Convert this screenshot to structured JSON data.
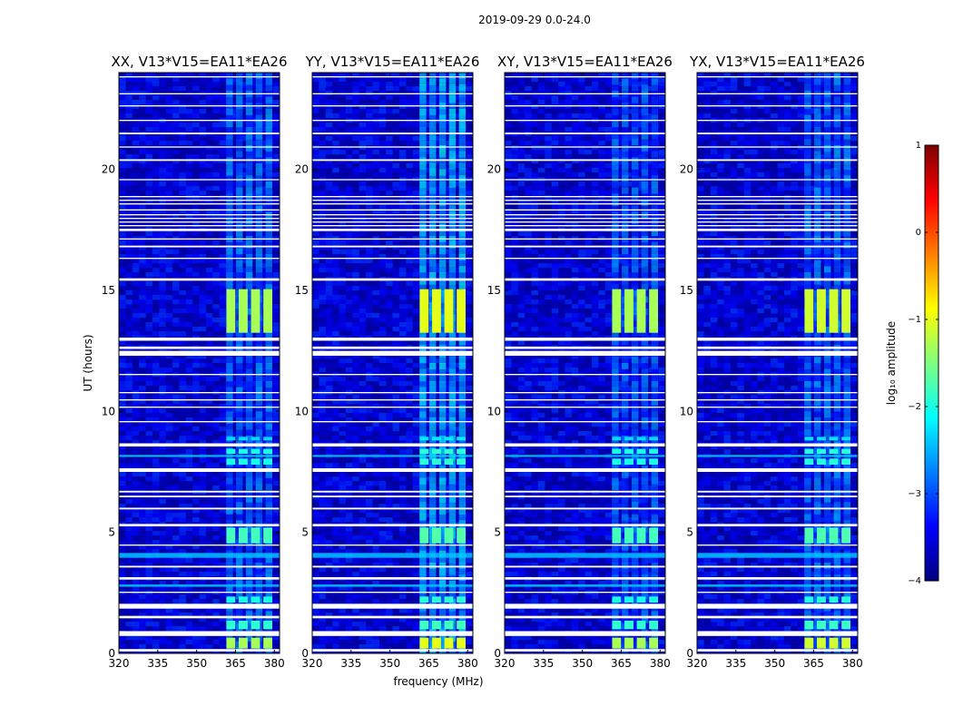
{
  "suptitle": "2019-09-29 0.0-24.0",
  "chart_data": {
    "type": "heatmap",
    "title": "2019-09-29 0.0-24.0",
    "xlabel": "frequency (MHz)",
    "ylabel": "UT (hours)",
    "xlim": [
      320,
      382
    ],
    "ylim": [
      0,
      24
    ],
    "xticks": [
      320,
      335,
      350,
      365,
      380
    ],
    "yticks": [
      0,
      5,
      10,
      15,
      20
    ],
    "colorbar": {
      "label": "log₁₀ amplitude",
      "range": [
        -4,
        1
      ],
      "ticks": [
        1,
        0,
        -1,
        -2,
        -3,
        -4
      ],
      "tick_labels": [
        "1",
        "0",
        "−1",
        "−2",
        "−3",
        "−4"
      ],
      "colormap": [
        "#00007f",
        "#0000ff",
        "#007fff",
        "#00ffff",
        "#7fff7f",
        "#ffff00",
        "#ff7f00",
        "#ff0000",
        "#7f0000"
      ]
    },
    "rfi_band_MHz": [
      361,
      380
    ],
    "bright_rfi_hours": [
      [
        0.2,
        0.65,
        -1.3
      ],
      [
        1.0,
        1.35,
        -1.9
      ],
      [
        2.1,
        2.35,
        -2.0
      ],
      [
        4.55,
        5.2,
        -1.8
      ],
      [
        7.8,
        8.05,
        -2.0
      ],
      [
        8.25,
        8.45,
        -2.0
      ],
      [
        8.8,
        8.95,
        -2.3
      ],
      [
        13.25,
        15.05,
        -1.3
      ]
    ],
    "narrowband_rfi_hours": [
      [
        2.75,
        2.85,
        -2.4
      ],
      [
        3.95,
        4.15,
        -2.4
      ],
      [
        8.12,
        8.2,
        -2.3
      ]
    ],
    "flagged_hours": [
      [
        0.08,
        0.18
      ],
      [
        0.72,
        0.92
      ],
      [
        1.45,
        1.55
      ],
      [
        1.85,
        2.05
      ],
      [
        2.5,
        2.55
      ],
      [
        3.05,
        3.15
      ],
      [
        3.55,
        3.62
      ],
      [
        4.45,
        4.5
      ],
      [
        5.25,
        5.35
      ],
      [
        5.95,
        6.02
      ],
      [
        6.45,
        6.52
      ],
      [
        6.65,
        6.72
      ],
      [
        7.5,
        7.65
      ],
      [
        8.55,
        8.68
      ],
      [
        9.55,
        9.6
      ],
      [
        10.15,
        10.2
      ],
      [
        10.45,
        10.5
      ],
      [
        10.75,
        10.8
      ],
      [
        11.5,
        11.55
      ],
      [
        12.3,
        12.5
      ],
      [
        12.58,
        12.68
      ],
      [
        12.92,
        13.05
      ],
      [
        15.4,
        15.5
      ],
      [
        16.3,
        16.35
      ],
      [
        16.78,
        16.85
      ],
      [
        17.1,
        17.15
      ],
      [
        17.45,
        17.55
      ],
      [
        17.65,
        17.7
      ],
      [
        17.8,
        17.85
      ],
      [
        17.95,
        18.0
      ],
      [
        18.1,
        18.15
      ],
      [
        18.3,
        18.35
      ],
      [
        18.55,
        18.6
      ],
      [
        18.7,
        18.75
      ],
      [
        18.85,
        18.9
      ],
      [
        19.55,
        19.6
      ],
      [
        20.35,
        20.42
      ],
      [
        20.9,
        20.95
      ],
      [
        21.45,
        21.52
      ],
      [
        22.0,
        22.05
      ],
      [
        22.6,
        22.65
      ],
      [
        23.1,
        23.15
      ],
      [
        23.8,
        23.85
      ]
    ],
    "panels": [
      {
        "title": "XX, V13*V15=EA11*EA26",
        "bg": -3.6,
        "rfi": -3.0,
        "bright": 0.0
      },
      {
        "title": "YY, V13*V15=EA11*EA26",
        "bg": -3.6,
        "rfi": -2.6,
        "bright": 0.3
      },
      {
        "title": "XY, V13*V15=EA11*EA26",
        "bg": -3.6,
        "rfi": -3.1,
        "bright": 0.0
      },
      {
        "title": "YX, V13*V15=EA11*EA26",
        "bg": -3.6,
        "rfi": -3.0,
        "bright": 0.2
      }
    ]
  }
}
